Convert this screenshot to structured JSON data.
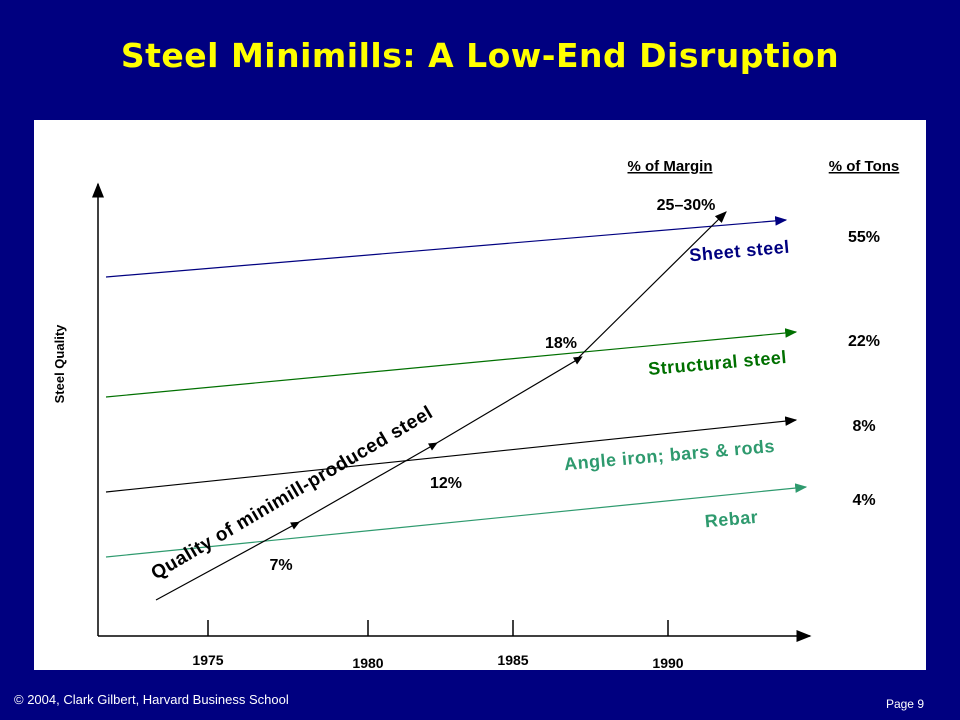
{
  "title": "Steel Minimills: A Low-End Disruption",
  "headers": {
    "margin": "% of Margin",
    "tons": "% of Tons"
  },
  "y_axis_label": "Steel Quality",
  "x_ticks": [
    "1975",
    "1980",
    "1985",
    "1990"
  ],
  "segments": [
    {
      "name": "Sheet steel",
      "tons": "55%",
      "color": "#000080"
    },
    {
      "name": "Structural steel",
      "tons": "22%",
      "color": "#007000"
    },
    {
      "name": "Angle iron; bars & rods",
      "tons": "8%",
      "color": "#000000"
    },
    {
      "name": "Rebar",
      "tons": "4%",
      "color": "#2e9a6e"
    }
  ],
  "margin_labels": [
    "7%",
    "12%",
    "18%",
    "25–30%"
  ],
  "trajectory_label": "Quality of minimill-produced steel",
  "footer": {
    "copyright": "© 2004,  Clark Gilbert, Harvard Business School",
    "page": "Page  9"
  }
}
